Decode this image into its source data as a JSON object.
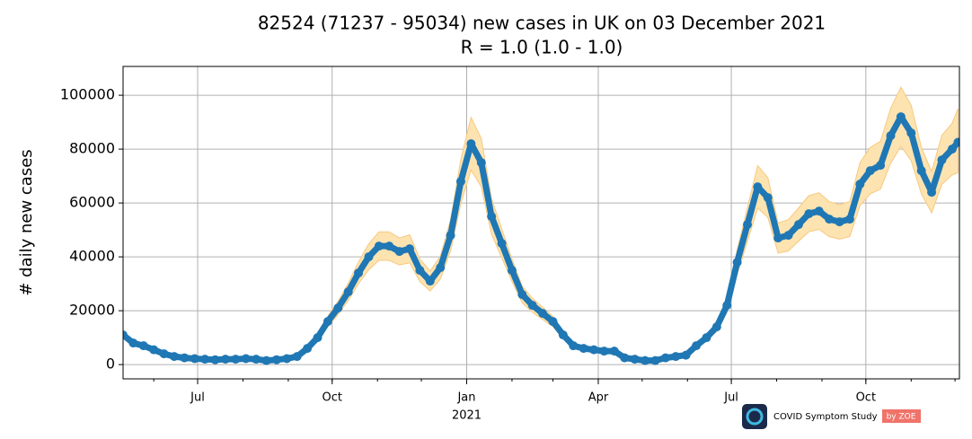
{
  "chart_data": {
    "type": "scatter",
    "title": "82524 (71237 - 95034) new cases in UK on 03 December 2021",
    "subtitle": "R = 1.0 (1.0 - 1.0)",
    "y_label": "# daily new cases",
    "x_year_label": "2021",
    "logo": {
      "name": "COVID Symptom Study",
      "by": "by ZOE"
    },
    "grid": true,
    "band_color": "#fde3b0",
    "xlim": [
      "2020-05-11",
      "2021-12-04"
    ],
    "xticks": [
      {
        "value": "2020-07-01",
        "label": "Jul"
      },
      {
        "value": "2020-10-01",
        "label": "Oct"
      },
      {
        "value": "2021-01-01",
        "label": "Jan"
      },
      {
        "value": "2021-04-01",
        "label": "Apr"
      },
      {
        "value": "2021-07-01",
        "label": "Jul"
      },
      {
        "value": "2021-10-01",
        "label": "Oct"
      }
    ],
    "ylim": [
      -5300,
      110700
    ],
    "yticks": [
      0,
      20000,
      40000,
      60000,
      80000,
      100000
    ],
    "x": [
      "2020-05-11",
      "2020-05-18",
      "2020-05-25",
      "2020-06-01",
      "2020-06-08",
      "2020-06-15",
      "2020-06-22",
      "2020-06-29",
      "2020-07-06",
      "2020-07-13",
      "2020-07-20",
      "2020-07-27",
      "2020-08-03",
      "2020-08-10",
      "2020-08-17",
      "2020-08-24",
      "2020-08-31",
      "2020-09-07",
      "2020-09-14",
      "2020-09-21",
      "2020-09-28",
      "2020-10-05",
      "2020-10-12",
      "2020-10-19",
      "2020-10-26",
      "2020-11-02",
      "2020-11-09",
      "2020-11-16",
      "2020-11-23",
      "2020-11-30",
      "2020-12-07",
      "2020-12-14",
      "2020-12-21",
      "2020-12-28",
      "2021-01-04",
      "2021-01-11",
      "2021-01-18",
      "2021-01-25",
      "2021-02-01",
      "2021-02-08",
      "2021-02-15",
      "2021-02-22",
      "2021-03-01",
      "2021-03-08",
      "2021-03-15",
      "2021-03-22",
      "2021-03-29",
      "2021-04-05",
      "2021-04-12",
      "2021-04-19",
      "2021-04-26",
      "2021-05-03",
      "2021-05-10",
      "2021-05-17",
      "2021-05-24",
      "2021-05-31",
      "2021-06-07",
      "2021-06-14",
      "2021-06-21",
      "2021-06-28",
      "2021-07-05",
      "2021-07-12",
      "2021-07-19",
      "2021-07-26",
      "2021-08-02",
      "2021-08-09",
      "2021-08-16",
      "2021-08-23",
      "2021-08-30",
      "2021-09-06",
      "2021-09-13",
      "2021-09-20",
      "2021-09-27",
      "2021-10-04",
      "2021-10-11",
      "2021-10-18",
      "2021-10-25",
      "2021-11-01",
      "2021-11-08",
      "2021-11-15",
      "2021-11-22",
      "2021-11-29",
      "2021-12-03"
    ],
    "series": [
      {
        "name": "new cases",
        "color": "#1f77b4",
        "values": [
          11000,
          8000,
          7000,
          5500,
          4000,
          3000,
          2500,
          2200,
          2000,
          1800,
          2000,
          2000,
          2200,
          2000,
          1500,
          1800,
          2200,
          3000,
          6000,
          10000,
          16000,
          21000,
          27000,
          34000,
          40000,
          44000,
          44000,
          42000,
          43000,
          35000,
          31000,
          36000,
          48000,
          68000,
          82000,
          75000,
          55000,
          45000,
          35000,
          26000,
          22000,
          19000,
          16000,
          11000,
          7000,
          6000,
          5500,
          5000,
          5000,
          2500,
          2000,
          1500,
          1500,
          2500,
          3000,
          3500,
          7000,
          10000,
          14000,
          22000,
          38000,
          52000,
          66000,
          62000,
          47000,
          48000,
          52000,
          56000,
          57000,
          54000,
          53000,
          54000,
          67000,
          72000,
          74000,
          85000,
          92000,
          86000,
          72000,
          64000,
          76000,
          80000,
          82524
        ],
        "lower": [
          9700,
          7000,
          6200,
          4800,
          3500,
          2600,
          2200,
          1900,
          1800,
          1600,
          1800,
          1800,
          1900,
          1800,
          1300,
          1600,
          1900,
          2600,
          5300,
          8800,
          14000,
          18500,
          23800,
          30000,
          35200,
          38700,
          38700,
          37000,
          37800,
          30800,
          27300,
          31700,
          42200,
          59800,
          72200,
          66000,
          48400,
          39600,
          30800,
          22900,
          19400,
          16700,
          14100,
          9700,
          6200,
          5300,
          4800,
          4400,
          4400,
          2200,
          1800,
          1300,
          1300,
          2200,
          2600,
          3100,
          6200,
          8800,
          12300,
          19400,
          33400,
          45800,
          58100,
          54600,
          41400,
          42200,
          45800,
          49300,
          50200,
          47500,
          46600,
          47500,
          59000,
          63400,
          65100,
          74800,
          81000,
          75700,
          63400,
          56300,
          66900,
          70400,
          71237
        ],
        "upper": [
          12300,
          9000,
          7800,
          6200,
          4500,
          3400,
          2800,
          2500,
          2200,
          2000,
          2200,
          2200,
          2500,
          2200,
          1700,
          2000,
          2500,
          3400,
          6700,
          11200,
          17900,
          23500,
          30200,
          38100,
          44800,
          49300,
          49300,
          47000,
          48200,
          39200,
          34700,
          40300,
          53800,
          76200,
          91800,
          84000,
          61600,
          50400,
          39200,
          29100,
          24600,
          21300,
          17900,
          12300,
          7800,
          6700,
          6200,
          5600,
          5600,
          2800,
          2200,
          1700,
          1700,
          2800,
          3400,
          3900,
          7800,
          11200,
          15700,
          24600,
          42600,
          58200,
          73900,
          69400,
          52600,
          53800,
          58200,
          62700,
          63800,
          60500,
          59400,
          60500,
          75000,
          80600,
          82900,
          95200,
          103000,
          96300,
          80600,
          71700,
          85100,
          89600,
          95034
        ]
      }
    ]
  }
}
